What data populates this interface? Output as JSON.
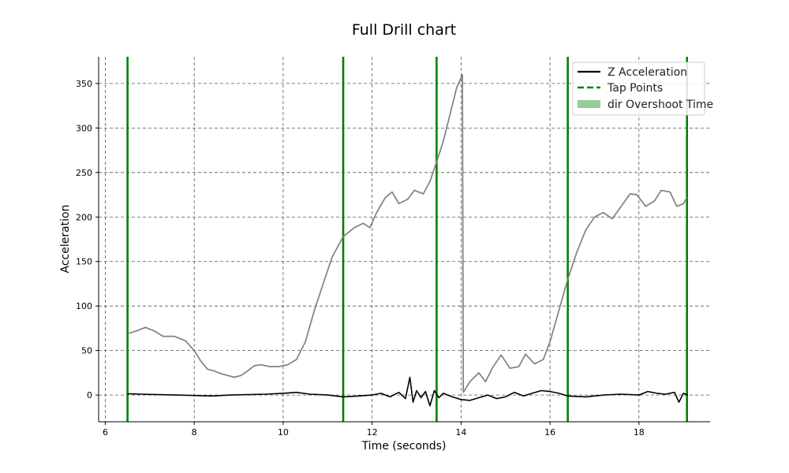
{
  "chart_data": {
    "type": "line",
    "title": "Full Drill chart",
    "xlabel": "Time (seconds)",
    "ylabel": "Acceleration",
    "xlim": [
      5.85,
      19.6
    ],
    "ylim": [
      -30,
      380
    ],
    "xticks": [
      6,
      8,
      10,
      12,
      14,
      16,
      18
    ],
    "yticks": [
      0,
      50,
      100,
      150,
      200,
      250,
      300,
      350
    ],
    "grid": true,
    "legend_position": "top-right",
    "legend": [
      {
        "label": "Z Acceleration",
        "style": "solid",
        "color": "#000000"
      },
      {
        "label": "Tap Points",
        "style": "dashed",
        "color": "#008000"
      },
      {
        "label": "dir Overshoot Time",
        "style": "patch",
        "color": "#98cc98"
      }
    ],
    "tap_points": [
      6.5,
      11.35,
      13.45,
      16.4,
      19.08
    ],
    "series": [
      {
        "name": "Z Acceleration",
        "color": "#000000",
        "points": [
          [
            6.5,
            1.5
          ],
          [
            6.8,
            1
          ],
          [
            7.2,
            0.5
          ],
          [
            7.6,
            0
          ],
          [
            8.0,
            -0.5
          ],
          [
            8.4,
            -1
          ],
          [
            8.8,
            0
          ],
          [
            9.2,
            0.5
          ],
          [
            9.6,
            1
          ],
          [
            10.0,
            2
          ],
          [
            10.3,
            3
          ],
          [
            10.6,
            1
          ],
          [
            11.0,
            0
          ],
          [
            11.35,
            -2
          ],
          [
            11.7,
            -1
          ],
          [
            12.0,
            0
          ],
          [
            12.2,
            2
          ],
          [
            12.4,
            -2
          ],
          [
            12.6,
            3
          ],
          [
            12.75,
            -4
          ],
          [
            12.85,
            20
          ],
          [
            12.92,
            -8
          ],
          [
            13.0,
            5
          ],
          [
            13.1,
            -3
          ],
          [
            13.2,
            4
          ],
          [
            13.3,
            -12
          ],
          [
            13.4,
            5
          ],
          [
            13.5,
            -3
          ],
          [
            13.6,
            2
          ],
          [
            13.8,
            -2
          ],
          [
            14.0,
            -5
          ],
          [
            14.2,
            -6
          ],
          [
            14.4,
            -3
          ],
          [
            14.6,
            0
          ],
          [
            14.8,
            -4
          ],
          [
            15.0,
            -2
          ],
          [
            15.2,
            3
          ],
          [
            15.4,
            -1
          ],
          [
            15.6,
            2
          ],
          [
            15.8,
            5
          ],
          [
            16.0,
            4
          ],
          [
            16.2,
            2
          ],
          [
            16.4,
            -1
          ],
          [
            16.8,
            -2
          ],
          [
            17.2,
            0
          ],
          [
            17.6,
            1
          ],
          [
            18.0,
            0
          ],
          [
            18.2,
            4
          ],
          [
            18.4,
            2
          ],
          [
            18.6,
            1
          ],
          [
            18.8,
            3
          ],
          [
            18.9,
            -8
          ],
          [
            19.0,
            2
          ],
          [
            19.1,
            0
          ]
        ]
      },
      {
        "name": "Overshoot",
        "color": "#808080",
        "points": [
          [
            6.5,
            69
          ],
          [
            6.7,
            72
          ],
          [
            6.9,
            76
          ],
          [
            7.1,
            72
          ],
          [
            7.3,
            66
          ],
          [
            7.55,
            66
          ],
          [
            7.8,
            61
          ],
          [
            8.0,
            50
          ],
          [
            8.15,
            38
          ],
          [
            8.3,
            29
          ],
          [
            8.45,
            27
          ],
          [
            8.6,
            24
          ],
          [
            8.75,
            22
          ],
          [
            8.9,
            20
          ],
          [
            9.05,
            22
          ],
          [
            9.2,
            27
          ],
          [
            9.35,
            33
          ],
          [
            9.5,
            34
          ],
          [
            9.7,
            32
          ],
          [
            9.9,
            32
          ],
          [
            10.1,
            34
          ],
          [
            10.3,
            40
          ],
          [
            10.5,
            60
          ],
          [
            10.7,
            95
          ],
          [
            10.9,
            125
          ],
          [
            11.1,
            155
          ],
          [
            11.35,
            178
          ],
          [
            11.6,
            188
          ],
          [
            11.8,
            193
          ],
          [
            11.95,
            188
          ],
          [
            12.1,
            205
          ],
          [
            12.3,
            222
          ],
          [
            12.45,
            228
          ],
          [
            12.6,
            215
          ],
          [
            12.8,
            220
          ],
          [
            12.95,
            230
          ],
          [
            13.15,
            226
          ],
          [
            13.3,
            240
          ],
          [
            13.45,
            262
          ],
          [
            13.6,
            285
          ],
          [
            13.75,
            315
          ],
          [
            13.9,
            345
          ],
          [
            14.03,
            360
          ],
          [
            14.05,
            3
          ],
          [
            14.2,
            15
          ],
          [
            14.4,
            25
          ],
          [
            14.55,
            15
          ],
          [
            14.7,
            30
          ],
          [
            14.9,
            45
          ],
          [
            15.1,
            30
          ],
          [
            15.3,
            32
          ],
          [
            15.45,
            46
          ],
          [
            15.65,
            35
          ],
          [
            15.85,
            40
          ],
          [
            16.0,
            60
          ],
          [
            16.2,
            95
          ],
          [
            16.4,
            130
          ],
          [
            16.6,
            160
          ],
          [
            16.8,
            185
          ],
          [
            17.0,
            200
          ],
          [
            17.2,
            205
          ],
          [
            17.4,
            198
          ],
          [
            17.6,
            212
          ],
          [
            17.8,
            226
          ],
          [
            17.95,
            225
          ],
          [
            18.15,
            212
          ],
          [
            18.35,
            218
          ],
          [
            18.5,
            230
          ],
          [
            18.7,
            228
          ],
          [
            18.85,
            212
          ],
          [
            19.0,
            215
          ],
          [
            19.08,
            222
          ]
        ]
      }
    ]
  }
}
